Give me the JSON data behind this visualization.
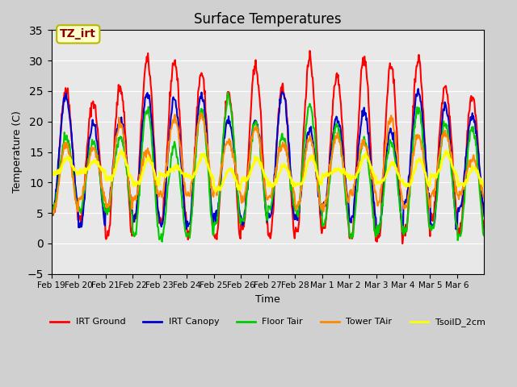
{
  "title": "Surface Temperatures",
  "xlabel": "Time",
  "ylabel": "Temperature (C)",
  "ylim": [
    -5,
    35
  ],
  "yticks": [
    -5,
    0,
    5,
    10,
    15,
    20,
    25,
    30,
    35
  ],
  "background_color": "#e8e8e8",
  "plot_bg_color": "#e8e8e8",
  "annotation_text": "TZ_irt",
  "annotation_color": "#8b0000",
  "annotation_bg": "#ffffcc",
  "annotation_border": "#b8b800",
  "legend_entries": [
    "IRT Ground",
    "IRT Canopy",
    "Floor Tair",
    "Tower TAir",
    "TsoilD_2cm"
  ],
  "line_colors": [
    "#ff0000",
    "#0000cc",
    "#00cc00",
    "#ff8800",
    "#ffff00"
  ],
  "line_widths": [
    1.5,
    1.5,
    1.5,
    1.5,
    2.0
  ],
  "xtick_labels": [
    "Feb 19",
    "Feb 20",
    "Feb 21",
    "Feb 22",
    "Feb 23",
    "Feb 24",
    "Feb 25",
    "Feb 26",
    "Feb 27",
    "Feb 28",
    "Mar 1",
    "Mar 2",
    "Mar 3",
    "Mar 4",
    "Mar 5",
    "Mar 6"
  ],
  "num_days": 16,
  "grid_color": "#ffffff",
  "grid_alpha": 1.0
}
